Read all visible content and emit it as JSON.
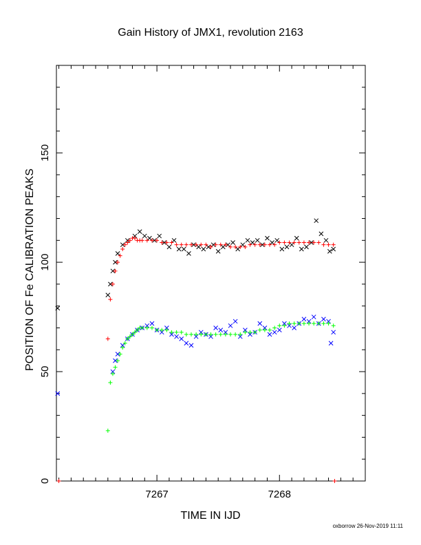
{
  "chart_data": {
    "type": "scatter",
    "title": "Gain History of JMX1, revolution 2163",
    "xlabel": "TIME IN IJD",
    "ylabel": "POSITION OF Fe CALIBRATION PEAKS",
    "xlim": [
      7266.18,
      7268.7
    ],
    "ylim": [
      0,
      190
    ],
    "xticks": [
      7267,
      7268
    ],
    "yticks": [
      0,
      50,
      100,
      150
    ],
    "grid": false,
    "colors": {
      "black": "#000000",
      "red": "#ff0000",
      "blue": "#0000ff",
      "green": "#00ff00"
    },
    "series": [
      {
        "marker": "x",
        "color": "black",
        "x": [
          7266.19,
          7266.6,
          7266.62,
          7266.64,
          7266.66,
          7266.68,
          7266.72,
          7266.76,
          7266.82,
          7266.86,
          7266.9,
          7266.94,
          7266.98,
          7267.02,
          7267.06,
          7267.1,
          7267.14,
          7267.18,
          7267.22,
          7267.26,
          7267.3,
          7267.34,
          7267.38,
          7267.42,
          7267.46,
          7267.5,
          7267.54,
          7267.58,
          7267.62,
          7267.66,
          7267.7,
          7267.74,
          7267.78,
          7267.82,
          7267.86,
          7267.9,
          7267.94,
          7267.98,
          7268.02,
          7268.06,
          7268.1,
          7268.14,
          7268.18,
          7268.22,
          7268.26,
          7268.3,
          7268.34,
          7268.38,
          7268.41,
          7268.44
        ],
        "y": [
          79,
          85,
          90,
          96,
          100,
          104,
          108,
          110,
          112,
          114,
          112,
          111,
          110,
          112,
          109,
          107,
          110,
          106,
          106,
          104,
          108,
          107,
          106,
          107,
          108,
          105,
          107,
          108,
          109,
          106,
          108,
          110,
          109,
          110,
          108,
          111,
          109,
          110,
          106,
          107,
          108,
          111,
          106,
          107,
          109,
          119,
          113,
          110,
          105,
          106
        ]
      },
      {
        "marker": "+",
        "color": "red",
        "x": [
          7266.2,
          7266.6,
          7266.62,
          7266.64,
          7266.66,
          7266.68,
          7266.7,
          7266.72,
          7266.74,
          7266.76,
          7266.78,
          7266.8,
          7266.82,
          7266.84,
          7266.86,
          7266.88,
          7266.92,
          7266.96,
          7267.0,
          7267.04,
          7267.08,
          7267.12,
          7267.16,
          7267.2,
          7267.24,
          7267.28,
          7267.32,
          7267.36,
          7267.4,
          7267.44,
          7267.48,
          7267.52,
          7267.56,
          7267.6,
          7267.64,
          7267.68,
          7267.72,
          7267.76,
          7267.8,
          7267.84,
          7267.88,
          7267.92,
          7267.96,
          7268.0,
          7268.04,
          7268.08,
          7268.12,
          7268.16,
          7268.2,
          7268.24,
          7268.28,
          7268.32,
          7268.36,
          7268.4,
          7268.44,
          7268.45
        ],
        "y": [
          0,
          65,
          83,
          90,
          96,
          100,
          103,
          106,
          108,
          109,
          110,
          111,
          111,
          110,
          110,
          110,
          110,
          110,
          110,
          109,
          109,
          109,
          108,
          108,
          108,
          108,
          108,
          108,
          108,
          107,
          108,
          108,
          108,
          107,
          107,
          107,
          107,
          108,
          108,
          108,
          108,
          108,
          108,
          109,
          109,
          109,
          109,
          109,
          109,
          109,
          109,
          109,
          108,
          108,
          108,
          0
        ]
      },
      {
        "marker": "x",
        "color": "blue",
        "x": [
          7266.19,
          7266.64,
          7266.66,
          7266.68,
          7266.72,
          7266.76,
          7266.8,
          7266.84,
          7266.88,
          7266.92,
          7266.96,
          7267.0,
          7267.04,
          7267.08,
          7267.12,
          7267.16,
          7267.2,
          7267.24,
          7267.28,
          7267.32,
          7267.36,
          7267.4,
          7267.44,
          7267.48,
          7267.52,
          7267.56,
          7267.6,
          7267.64,
          7267.68,
          7267.72,
          7267.76,
          7267.8,
          7267.84,
          7267.88,
          7267.92,
          7267.96,
          7268.0,
          7268.04,
          7268.08,
          7268.12,
          7268.16,
          7268.2,
          7268.24,
          7268.28,
          7268.32,
          7268.36,
          7268.4,
          7268.42,
          7268.44
        ],
        "y": [
          40,
          50,
          55,
          58,
          62,
          65,
          67,
          69,
          70,
          71,
          72,
          69,
          68,
          70,
          67,
          66,
          65,
          63,
          62,
          66,
          68,
          67,
          66,
          70,
          69,
          68,
          71,
          73,
          66,
          69,
          67,
          68,
          72,
          70,
          67,
          68,
          69,
          72,
          71,
          70,
          72,
          74,
          73,
          75,
          72,
          74,
          73,
          63,
          68
        ]
      },
      {
        "marker": "+",
        "color": "green",
        "x": [
          7266.6,
          7266.62,
          7266.64,
          7266.66,
          7266.68,
          7266.7,
          7266.72,
          7266.74,
          7266.76,
          7266.78,
          7266.8,
          7266.82,
          7266.84,
          7266.86,
          7266.88,
          7266.92,
          7266.96,
          7267.0,
          7267.04,
          7267.08,
          7267.12,
          7267.16,
          7267.2,
          7267.24,
          7267.28,
          7267.32,
          7267.36,
          7267.4,
          7267.44,
          7267.48,
          7267.52,
          7267.56,
          7267.6,
          7267.64,
          7267.68,
          7267.72,
          7267.76,
          7267.8,
          7267.84,
          7267.88,
          7267.92,
          7267.96,
          7268.0,
          7268.04,
          7268.08,
          7268.12,
          7268.16,
          7268.2,
          7268.24,
          7268.28,
          7268.32,
          7268.36,
          7268.4,
          7268.44
        ],
        "y": [
          23,
          45,
          49,
          52,
          55,
          58,
          61,
          63,
          65,
          66,
          67,
          68,
          69,
          70,
          70,
          70,
          70,
          69,
          69,
          69,
          68,
          68,
          68,
          67,
          67,
          67,
          67,
          67,
          67,
          67,
          67,
          67,
          67,
          67,
          67,
          68,
          68,
          68,
          69,
          69,
          69,
          70,
          71,
          71,
          72,
          72,
          72,
          72,
          72,
          72,
          72,
          72,
          72,
          71
        ]
      }
    ]
  },
  "footer": {
    "credit": "oxborrow 26-Nov-2019 11:11"
  }
}
